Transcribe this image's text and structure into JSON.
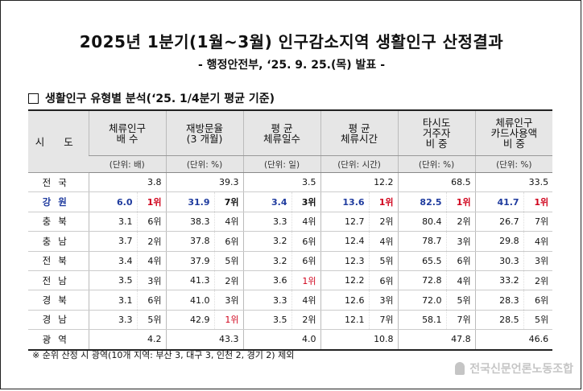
{
  "title": "2025년 1분기(1월~3월) 인구감소지역 생활인구 산정결과",
  "subtitle": "- 행정안전부, ‘25. 9. 25.(목) 발표 -",
  "section": "생활인구 유형별 분석(‘25. 1/4분기 평균 기준)",
  "colors": {
    "highlight": "#1f3b9e",
    "rank_first": "#d0021b",
    "header_bg": "#e6e6e6"
  },
  "table": {
    "sido_header": "시 도",
    "columns": [
      {
        "line1": "체류인구",
        "line2": "배    수",
        "unit": "(단위: 배)"
      },
      {
        "line1": "재방문율",
        "line2": "(3 개월)",
        "unit": "(단위: %)"
      },
      {
        "line1": "평    균",
        "line2": "체류일수",
        "unit": "(단위: 일)"
      },
      {
        "line1": "평    균",
        "line2": "체류시간",
        "unit": "(단위: 시간)"
      },
      {
        "line1": "타시도",
        "line2": "거주자",
        "line3": "비    중",
        "unit": "(단위: %)"
      },
      {
        "line1": "체류인구",
        "line2": "카드사용액",
        "line3": "비    중",
        "unit": "(단위: %)"
      }
    ],
    "rows": [
      {
        "sido": "전국",
        "cells": [
          [
            "3.8",
            ""
          ],
          [
            "39.3",
            ""
          ],
          [
            "3.5",
            ""
          ],
          [
            "12.2",
            ""
          ],
          [
            "68.5",
            ""
          ],
          [
            "33.5",
            ""
          ]
        ],
        "wide": true
      },
      {
        "sido": "강원",
        "highlight": true,
        "cells": [
          [
            "6.0",
            "1위"
          ],
          [
            "31.9",
            "7위"
          ],
          [
            "3.4",
            "3위"
          ],
          [
            "13.6",
            "1위"
          ],
          [
            "82.5",
            "1위"
          ],
          [
            "41.7",
            "1위"
          ]
        ]
      },
      {
        "sido": "충북",
        "cells": [
          [
            "3.1",
            "6위"
          ],
          [
            "38.3",
            "4위"
          ],
          [
            "3.3",
            "4위"
          ],
          [
            "12.7",
            "2위"
          ],
          [
            "80.4",
            "2위"
          ],
          [
            "26.7",
            "7위"
          ]
        ]
      },
      {
        "sido": "충남",
        "cells": [
          [
            "3.7",
            "2위"
          ],
          [
            "37.8",
            "6위"
          ],
          [
            "3.2",
            "6위"
          ],
          [
            "12.4",
            "4위"
          ],
          [
            "78.7",
            "3위"
          ],
          [
            "29.8",
            "4위"
          ]
        ]
      },
      {
        "sido": "전북",
        "cells": [
          [
            "3.4",
            "4위"
          ],
          [
            "37.9",
            "5위"
          ],
          [
            "3.2",
            "6위"
          ],
          [
            "12.3",
            "5위"
          ],
          [
            "65.5",
            "6위"
          ],
          [
            "30.3",
            "3위"
          ]
        ]
      },
      {
        "sido": "전남",
        "cells": [
          [
            "3.5",
            "3위"
          ],
          [
            "41.3",
            "2위"
          ],
          [
            "3.6",
            "1위"
          ],
          [
            "12.2",
            "6위"
          ],
          [
            "72.8",
            "4위"
          ],
          [
            "33.2",
            "2위"
          ]
        ]
      },
      {
        "sido": "경북",
        "cells": [
          [
            "3.1",
            "6위"
          ],
          [
            "41.0",
            "3위"
          ],
          [
            "3.3",
            "4위"
          ],
          [
            "12.6",
            "3위"
          ],
          [
            "72.0",
            "5위"
          ],
          [
            "28.3",
            "6위"
          ]
        ]
      },
      {
        "sido": "경남",
        "cells": [
          [
            "3.3",
            "5위"
          ],
          [
            "42.9",
            "1위"
          ],
          [
            "3.5",
            "2위"
          ],
          [
            "12.1",
            "7위"
          ],
          [
            "58.1",
            "7위"
          ],
          [
            "28.5",
            "5위"
          ]
        ]
      },
      {
        "sido": "광역",
        "cells": [
          [
            "4.2",
            ""
          ],
          [
            "43.3",
            ""
          ],
          [
            "4.0",
            ""
          ],
          [
            "10.8",
            ""
          ],
          [
            "47.8",
            ""
          ],
          [
            "46.6",
            ""
          ]
        ],
        "wide": true
      }
    ]
  },
  "note": "※ 순위 산정 시 광역(10개 지역: 부산 3, 대구 3, 인천 2, 경기 2) 제외",
  "watermark": "전국신문언론노동조합"
}
